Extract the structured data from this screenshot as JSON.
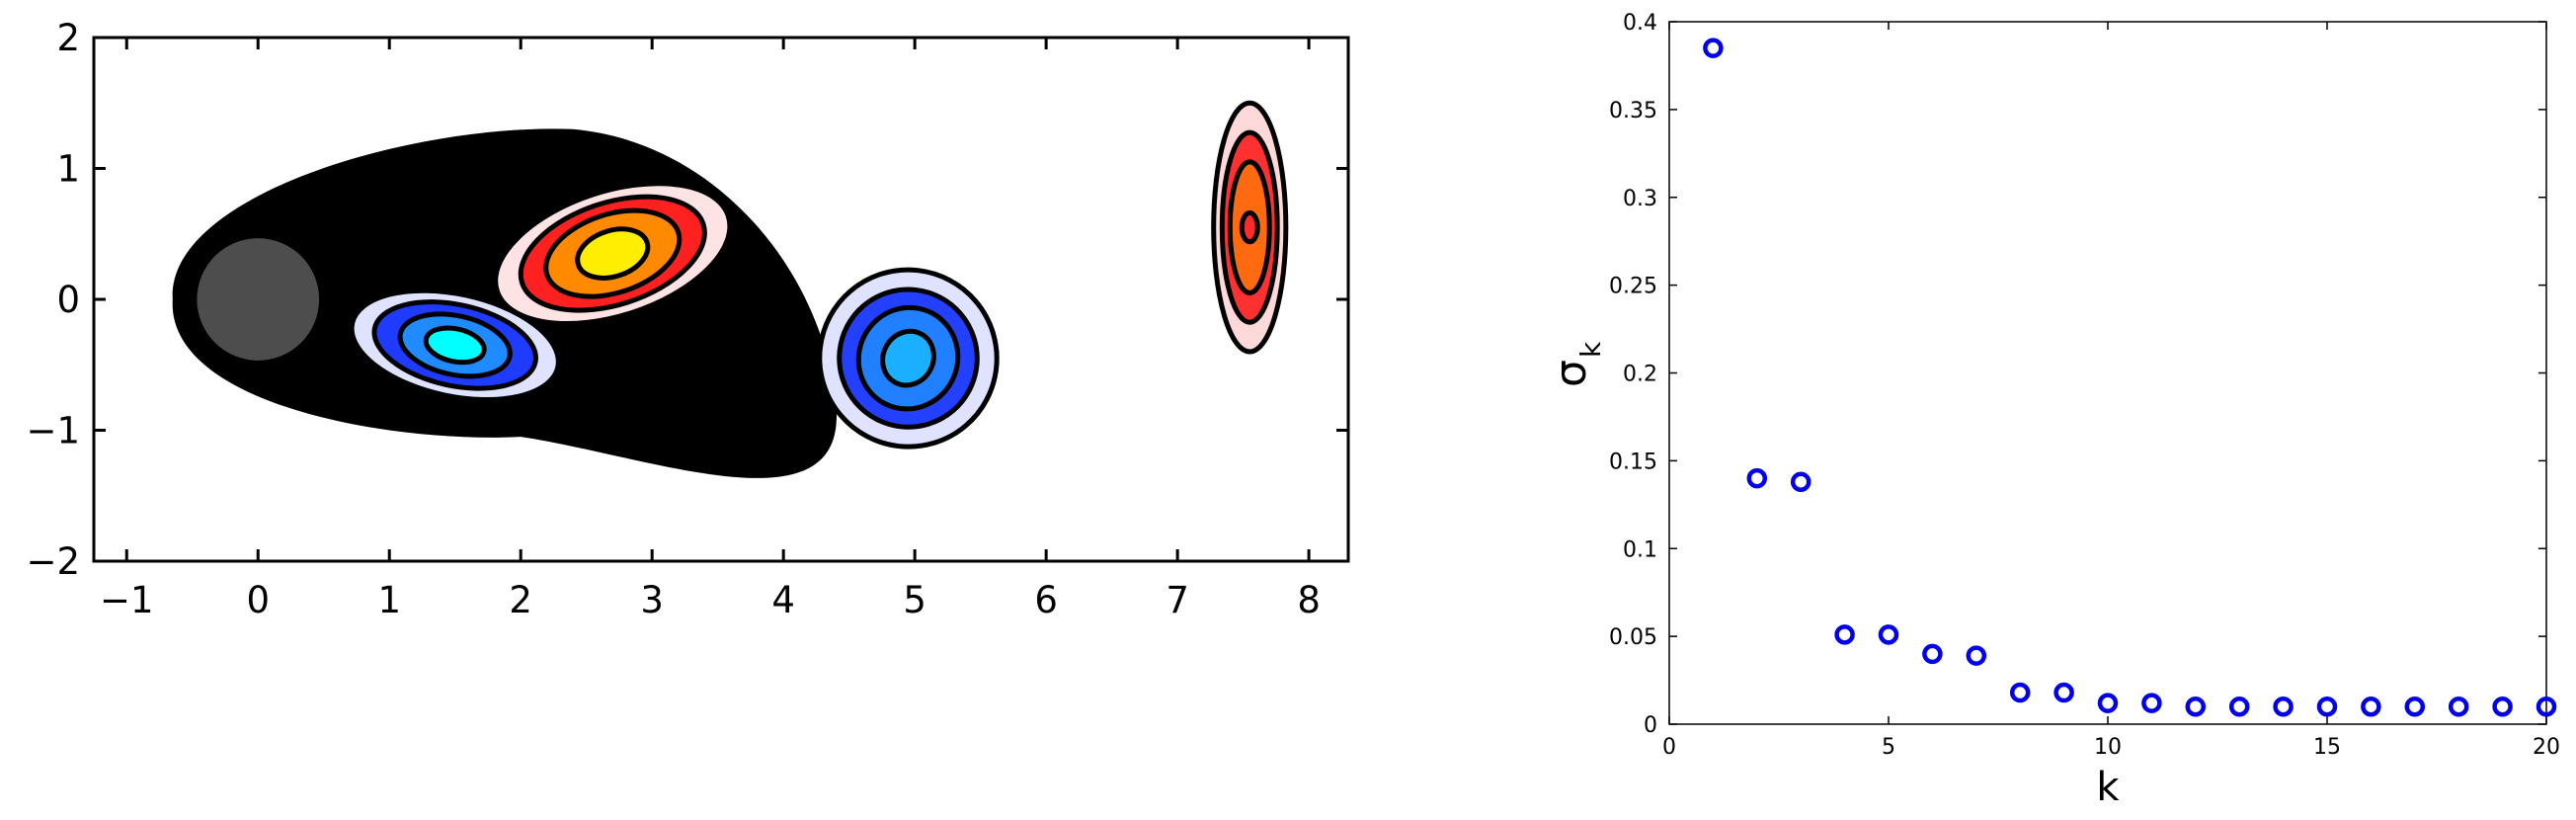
{
  "chart_data": [
    {
      "type": "contour",
      "title": "",
      "xlabel": "",
      "ylabel": "",
      "xlim": [
        -1.25,
        8.3
      ],
      "ylim": [
        -2,
        2
      ],
      "xticks": [
        -1,
        0,
        1,
        2,
        3,
        4,
        5,
        6,
        7,
        8
      ],
      "yticks": [
        -2,
        -1,
        0,
        1,
        2
      ],
      "xtick_labels": [
        "−1",
        "0",
        "1",
        "2",
        "3",
        "4",
        "5",
        "6",
        "7",
        "8"
      ],
      "ytick_labels": [
        "−2",
        "−1",
        "0",
        "1",
        "2"
      ],
      "cylinder": {
        "center": [
          0,
          0
        ],
        "radius": 0.5,
        "color": "#4d4d4d"
      },
      "vortices": [
        {
          "sign": "positive",
          "center": [
            2.7,
            0.35
          ],
          "colors": [
            "#fde3e3",
            "#ff2020",
            "#ff8a00",
            "#ffee00"
          ]
        },
        {
          "sign": "negative",
          "center": [
            1.5,
            -0.35
          ],
          "colors": [
            "#dfe3ff",
            "#1f3bff",
            "#1f8bff",
            "#00ffff"
          ]
        },
        {
          "sign": "negative",
          "center": [
            4.95,
            -0.45
          ],
          "colors": [
            "#dfe3ff",
            "#2340ff",
            "#2080ff",
            "#1ab0ff"
          ]
        },
        {
          "sign": "positive",
          "center": [
            7.55,
            0.55
          ],
          "colors": [
            "#ffd9d9",
            "#ff3030",
            "#ff6a10",
            "#ff2a2a"
          ]
        }
      ],
      "contour_color": "#000000",
      "grid": false
    },
    {
      "type": "scatter",
      "title": "",
      "xlabel": "k",
      "ylabel": "σ",
      "ylabel_subscript": "k",
      "xlim": [
        0,
        20
      ],
      "ylim": [
        0,
        0.4
      ],
      "xticks": [
        0,
        5,
        10,
        15,
        20
      ],
      "yticks": [
        0,
        0.05,
        0.1,
        0.15,
        0.2,
        0.25,
        0.3,
        0.35,
        0.4
      ],
      "xtick_labels": [
        "0",
        "5",
        "10",
        "15",
        "20"
      ],
      "ytick_labels": [
        "0",
        "0.05",
        "0.1",
        "0.15",
        "0.2",
        "0.25",
        "0.3",
        "0.35",
        "0.4"
      ],
      "marker": "circle",
      "marker_color": "#0000ee",
      "grid": false,
      "x": [
        1,
        2,
        3,
        4,
        5,
        6,
        7,
        8,
        9,
        10,
        11,
        12,
        13,
        14,
        15,
        16,
        17,
        18,
        19,
        20
      ],
      "y": [
        0.385,
        0.14,
        0.138,
        0.051,
        0.051,
        0.04,
        0.039,
        0.018,
        0.018,
        0.012,
        0.012,
        0.01,
        0.01,
        0.01,
        0.01,
        0.01,
        0.01,
        0.01,
        0.01,
        0.01
      ]
    }
  ]
}
